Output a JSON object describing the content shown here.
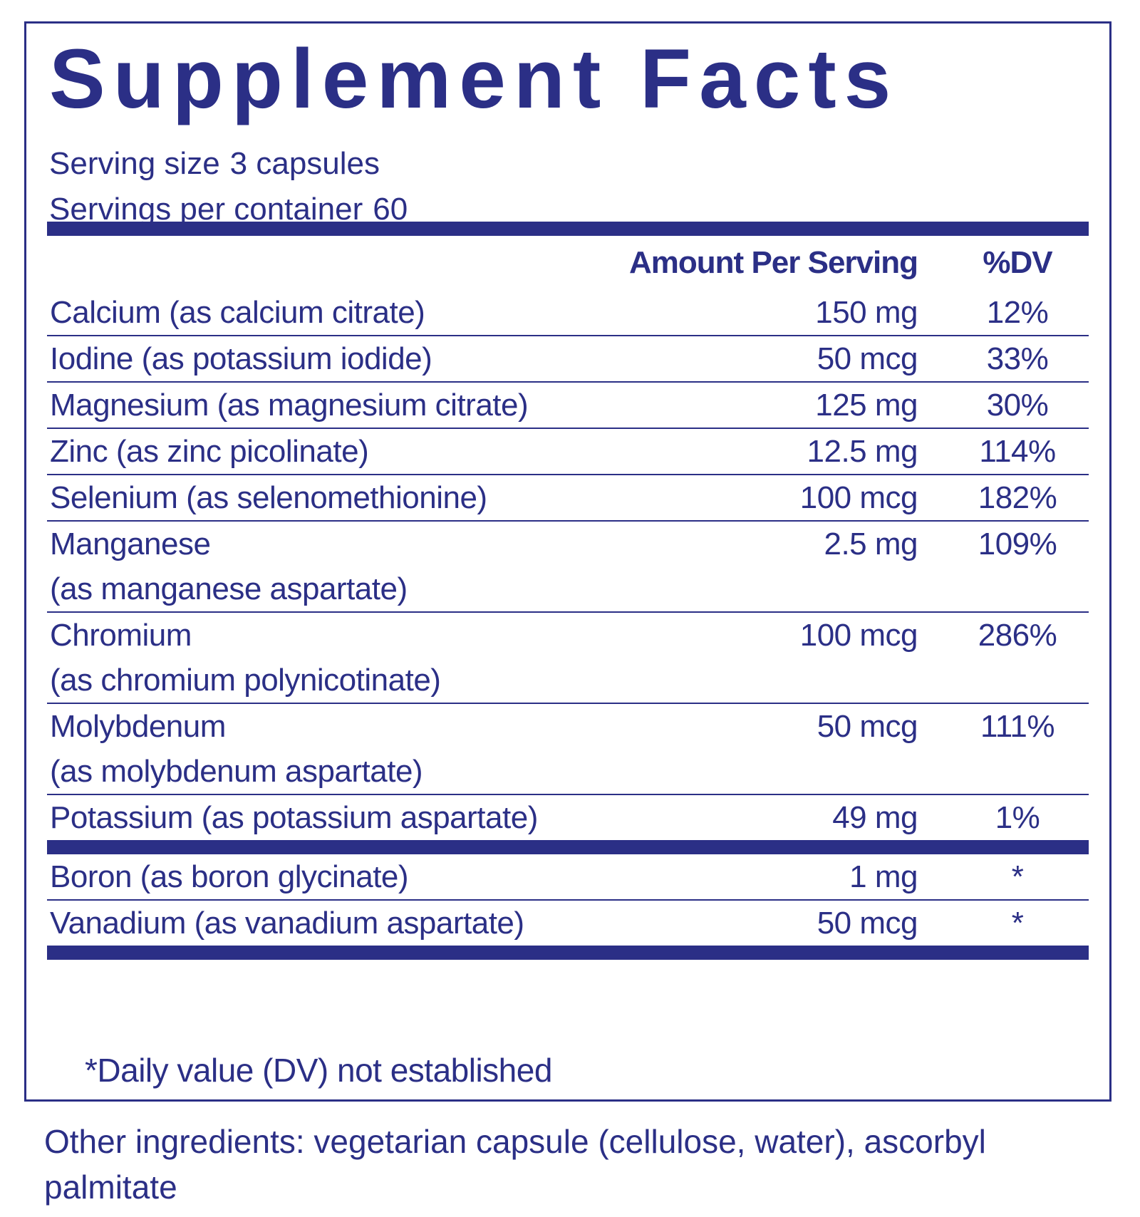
{
  "title": "Supplement Facts",
  "header": {
    "serving_size": {
      "label": "Serving size",
      "value": "3 capsules"
    },
    "servings_per_container": {
      "label": "Servings per container",
      "value": "60"
    }
  },
  "table": {
    "columns": [
      "Amount Per Serving",
      "%DV"
    ],
    "groups": [
      {
        "rows": [
          {
            "name": [
              "Calcium (as calcium citrate)"
            ],
            "amount": "150 mg",
            "dv": "12%"
          },
          {
            "name": [
              "Iodine (as potassium iodide)"
            ],
            "amount": "50 mcg",
            "dv": "33%"
          },
          {
            "name": [
              "Magnesium (as magnesium citrate)"
            ],
            "amount": "125 mg",
            "dv": "30%"
          },
          {
            "name": [
              "Zinc (as zinc picolinate)"
            ],
            "amount": "12.5 mg",
            "dv": "114%"
          },
          {
            "name": [
              "Selenium (as selenomethionine)"
            ],
            "amount": "100 mcg",
            "dv": "182%"
          },
          {
            "name": [
              "Manganese",
              "(as manganese aspartate)"
            ],
            "amount": "2.5 mg",
            "dv": "109%"
          },
          {
            "name": [
              "Chromium",
              "(as chromium polynicotinate)"
            ],
            "amount": "100 mcg",
            "dv": "286%"
          },
          {
            "name": [
              "Molybdenum",
              "(as molybdenum aspartate)"
            ],
            "amount": "50 mcg",
            "dv": "111%"
          },
          {
            "name": [
              "Potassium (as potassium aspartate)"
            ],
            "amount": "49 mg",
            "dv": "1%"
          }
        ]
      },
      {
        "rows": [
          {
            "name": [
              "Boron (as boron glycinate)"
            ],
            "amount": "1 mg",
            "dv": "*"
          },
          {
            "name": [
              "Vanadium (as vanadium aspartate)"
            ],
            "amount": "50 mcg",
            "dv": "*"
          }
        ]
      }
    ]
  },
  "footnote": "*Daily value (DV) not established",
  "other_ingredients": "Other ingredients: vegetarian capsule (cellulose, water), ascorbyl palmitate"
}
